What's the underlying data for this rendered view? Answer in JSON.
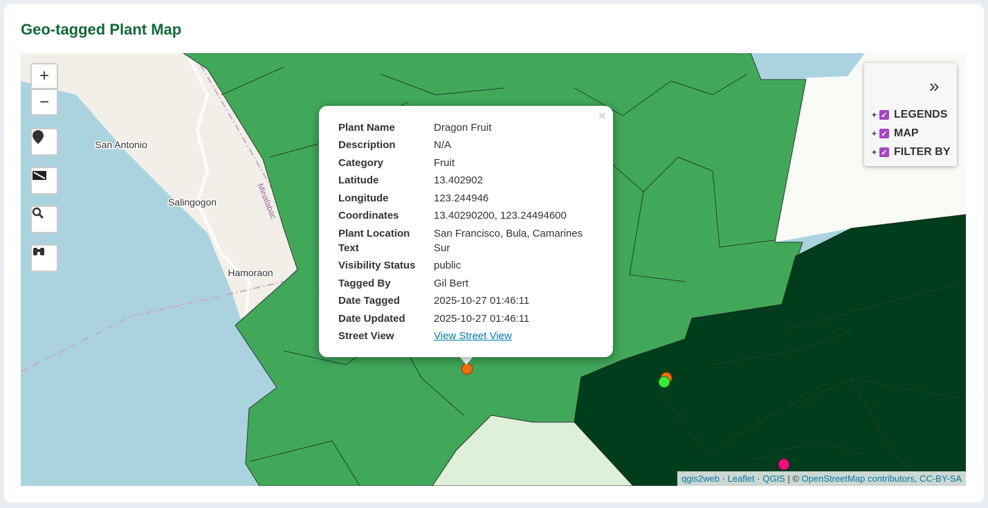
{
  "header": {
    "title": "Geo-tagged Plant Map"
  },
  "map": {
    "place_labels": [
      "San Antonio",
      "Salingogon",
      "Hamoraon",
      "Minalabac"
    ],
    "zoom_controls": [
      "+",
      "−"
    ]
  },
  "popup": {
    "close": "×",
    "rows": [
      [
        "Plant Name",
        "Dragon Fruit"
      ],
      [
        "Description",
        "N/A"
      ],
      [
        "Category",
        "Fruit"
      ],
      [
        "Latitude",
        "13.402902"
      ],
      [
        "Longitude",
        "123.244946"
      ],
      [
        "Coordinates",
        "13.40290200, 123.24494600"
      ],
      [
        "Plant Location Text",
        "San Francisco, Bula, Camarines Sur"
      ],
      [
        "Visibility Status",
        "public"
      ],
      [
        "Tagged By",
        "Gil Bert"
      ],
      [
        "Date Tagged",
        "2025-10-27 01:46:11"
      ],
      [
        "Date Updated",
        "2025-10-27 01:46:11"
      ],
      [
        "Street View",
        "View Street View"
      ]
    ]
  },
  "layer_control": {
    "toggle": "»",
    "items": [
      {
        "expander": "+",
        "label": "LEGENDS"
      },
      {
        "expander": "+",
        "label": "MAP"
      },
      {
        "expander": "+",
        "label": "FILTER BY"
      }
    ]
  },
  "attribution": [
    {
      "text": "qgis2web",
      "link": true
    },
    {
      "text": " · ",
      "link": false
    },
    {
      "text": "Leaflet",
      "link": true
    },
    {
      "text": " · ",
      "link": false
    },
    {
      "text": "QGIS",
      "link": true
    },
    {
      "text": " | © ",
      "link": false
    },
    {
      "text": "OpenStreetMap contributors, CC-BY-SA",
      "link": true
    }
  ]
}
